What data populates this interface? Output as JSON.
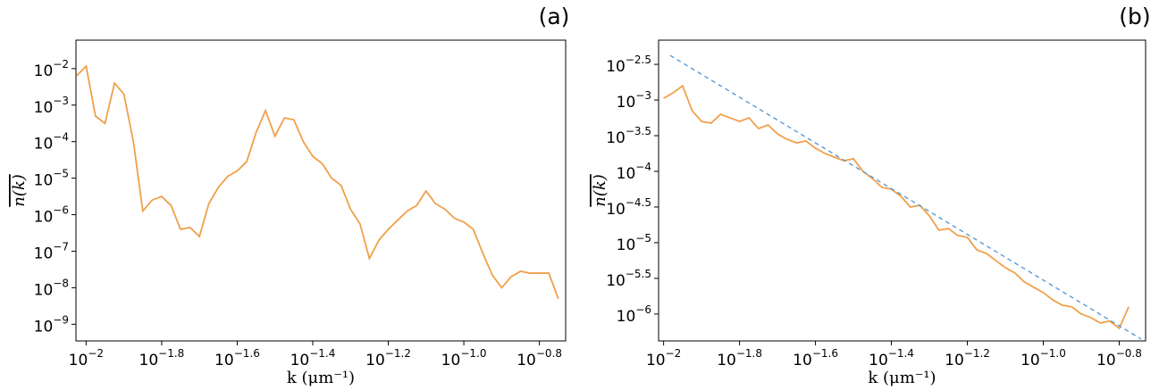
{
  "chart_data": [
    {
      "type": "line",
      "panel_label": "(a)",
      "xlabel": "k (μm⁻¹)",
      "ylabel": "n(k)",
      "xscale": "log",
      "yscale": "log",
      "xlim": [
        0.0094,
        0.186
      ],
      "ylim": [
        3.5e-10,
        0.06
      ],
      "xticks": [
        {
          "value": 0.01,
          "label": "10−2"
        },
        {
          "value": 0.01585,
          "label": "10−1.8"
        },
        {
          "value": 0.02512,
          "label": "10−1.6"
        },
        {
          "value": 0.03981,
          "label": "10−1.4"
        },
        {
          "value": 0.0631,
          "label": "10−1.2"
        },
        {
          "value": 0.1,
          "label": "10−1.0"
        },
        {
          "value": 0.1585,
          "label": "10−0.8"
        }
      ],
      "yticks": [
        {
          "value": 0.01,
          "label": "10−2"
        },
        {
          "value": 0.001,
          "label": "10−3"
        },
        {
          "value": 0.0001,
          "label": "10−4"
        },
        {
          "value": 1e-05,
          "label": "10−5"
        },
        {
          "value": 1e-06,
          "label": "10−6"
        },
        {
          "value": 1e-07,
          "label": "10−7"
        },
        {
          "value": 1e-08,
          "label": "10−8"
        },
        {
          "value": 1e-09,
          "label": "10−9"
        }
      ],
      "x": [
        0.00944,
        0.01,
        0.01059,
        0.01122,
        0.01189,
        0.01259,
        0.01334,
        0.01413,
        0.01496,
        0.01585,
        0.01679,
        0.01778,
        0.01884,
        0.01995,
        0.02113,
        0.02239,
        0.02371,
        0.02512,
        0.02661,
        0.02818,
        0.02985,
        0.03162,
        0.0335,
        0.03548,
        0.03758,
        0.03981,
        0.04217,
        0.04467,
        0.04732,
        0.05012,
        0.05309,
        0.05623,
        0.05957,
        0.0631,
        0.06683,
        0.07079,
        0.07499,
        0.07943,
        0.08414,
        0.08913,
        0.09441,
        0.1,
        0.1059,
        0.1122,
        0.1189,
        0.1259,
        0.1334,
        0.1413,
        0.1496,
        0.1585,
        0.1679,
        0.1778
      ],
      "series": [
        {
          "color": "#f0a04a",
          "values": [
            0.00631,
            0.0117,
            0.000501,
            0.000316,
            0.00398,
            0.002,
            0.0001,
            1.26e-06,
            2.51e-06,
            3.16e-06,
            1.78e-06,
            3.98e-07,
            4.47e-07,
            2.51e-07,
            2e-06,
            5.62e-06,
            1.12e-05,
            1.58e-05,
            2.82e-05,
            0.000178,
            0.000708,
            0.000141,
            0.000447,
            0.000398,
            0.0001,
            3.98e-05,
            2.51e-05,
            1e-05,
            6.31e-06,
            1.41e-06,
            5.62e-07,
            6.31e-08,
            2e-07,
            3.98e-07,
            7.08e-07,
            1.26e-06,
            1.78e-06,
            4.47e-06,
            2e-06,
            1.41e-06,
            7.94e-07,
            6.31e-07,
            3.98e-07,
            8.91e-08,
            2.24e-08,
            1e-08,
            2e-08,
            2.82e-08,
            2.51e-08,
            2.51e-08,
            2.51e-08,
            5.01e-09
          ]
        }
      ]
    },
    {
      "type": "line",
      "panel_label": "(b)",
      "xlabel": "k (μm⁻¹)",
      "ylabel": "n(k)",
      "xscale": "log",
      "yscale": "log",
      "xlim": [
        0.0097,
        0.186
      ],
      "ylim": [
        4.2e-07,
        0.0069
      ],
      "xticks": [
        {
          "value": 0.01,
          "label": "10−2"
        },
        {
          "value": 0.01585,
          "label": "10−1.8"
        },
        {
          "value": 0.02512,
          "label": "10−1.6"
        },
        {
          "value": 0.03981,
          "label": "10−1.4"
        },
        {
          "value": 0.0631,
          "label": "10−1.2"
        },
        {
          "value": 0.1,
          "label": "10−1.0"
        },
        {
          "value": 0.1585,
          "label": "10−0.8"
        }
      ],
      "yticks": [
        {
          "value": 0.003162,
          "label": "10−2.5"
        },
        {
          "value": 0.001,
          "label": "10−3"
        },
        {
          "value": 0.0003162,
          "label": "10−3.5"
        },
        {
          "value": 0.0001,
          "label": "10−4"
        },
        {
          "value": 3.162e-05,
          "label": "10−4.5"
        },
        {
          "value": 1e-05,
          "label": "10−5"
        },
        {
          "value": 3.162e-06,
          "label": "10−5.5"
        },
        {
          "value": 1e-06,
          "label": "10−6"
        }
      ],
      "x": [
        0.01,
        0.01059,
        0.01122,
        0.01189,
        0.01259,
        0.01334,
        0.01413,
        0.01496,
        0.01585,
        0.01679,
        0.01778,
        0.01884,
        0.01995,
        0.02113,
        0.02239,
        0.02371,
        0.02512,
        0.02661,
        0.02818,
        0.02985,
        0.03162,
        0.0335,
        0.03548,
        0.03758,
        0.03981,
        0.04217,
        0.04467,
        0.04732,
        0.05012,
        0.05309,
        0.05623,
        0.05957,
        0.0631,
        0.06683,
        0.07079,
        0.07499,
        0.07943,
        0.08414,
        0.08913,
        0.09441,
        0.1,
        0.1059,
        0.1122,
        0.1189,
        0.1259,
        0.1334,
        0.1413,
        0.1496,
        0.1585,
        0.1679
      ],
      "series": [
        {
          "color": "#f0a04a",
          "values": [
            0.00106,
            0.00126,
            0.00158,
            0.000708,
            0.000501,
            0.000473,
            0.000631,
            0.000562,
            0.000501,
            0.000562,
            0.000398,
            0.000447,
            0.000335,
            0.000282,
            0.000251,
            0.000266,
            0.000211,
            0.000178,
            0.000158,
            0.000141,
            0.00015,
            0.0001,
            7.94e-05,
            5.96e-05,
            5.62e-05,
            4.47e-05,
            3.16e-05,
            3.35e-05,
            2.37e-05,
            1.5e-05,
            1.58e-05,
            1.26e-05,
            1.19e-05,
            7.94e-06,
            7.08e-06,
            5.62e-06,
            4.47e-06,
            3.76e-06,
            2.82e-06,
            2.37e-06,
            2e-06,
            1.58e-06,
            1.33e-06,
            1.26e-06,
            1e-06,
            8.91e-07,
            7.5e-07,
            7.94e-07,
            6.31e-07,
            1.26e-06
          ]
        }
      ],
      "fit_line": {
        "color": "#5b9bd5",
        "dashed": true,
        "x": [
          0.0104,
          0.181
        ],
        "values": [
          0.00422,
          4.47e-07
        ]
      }
    }
  ]
}
